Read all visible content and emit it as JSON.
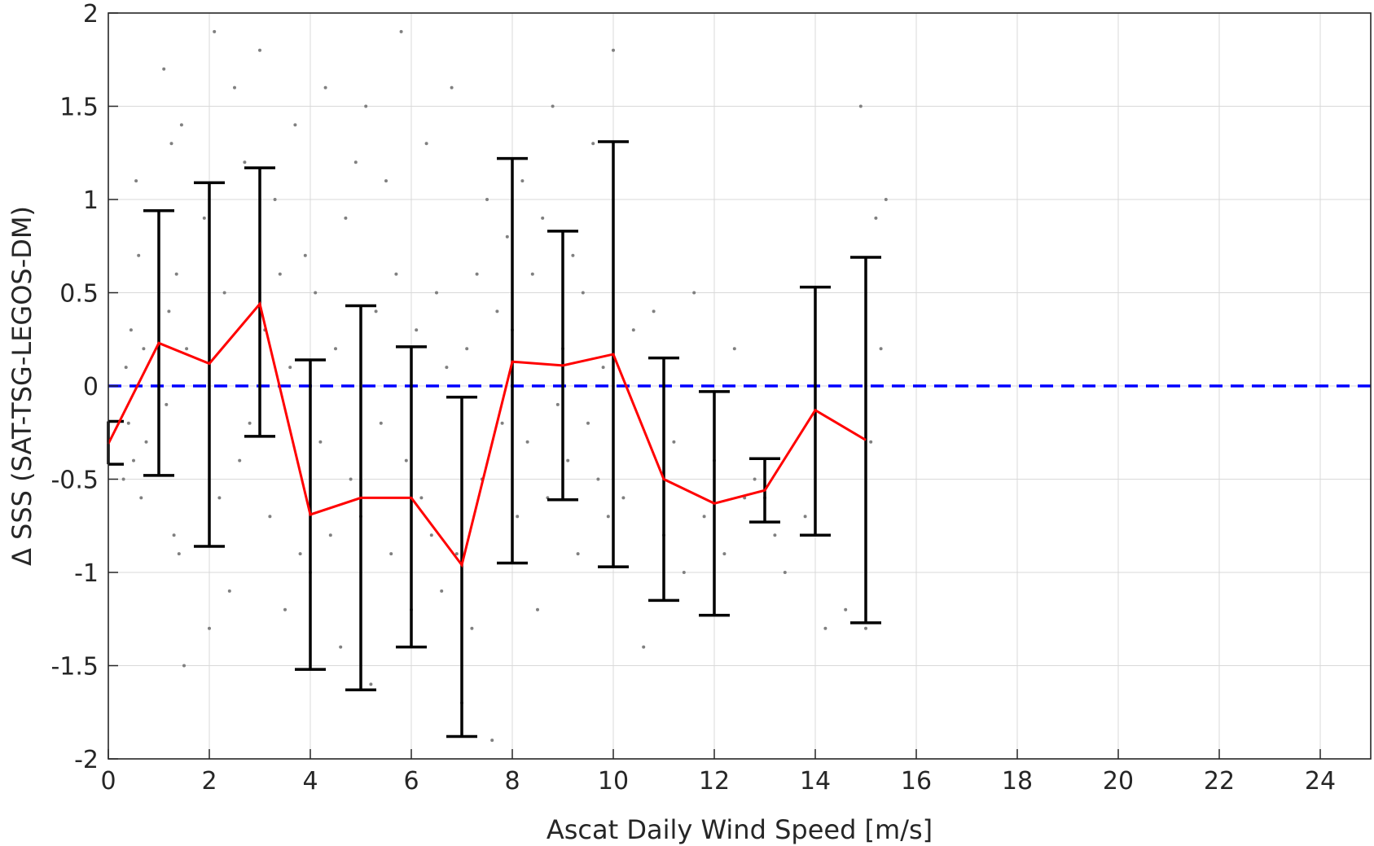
{
  "chart_data": {
    "type": "scatter",
    "xlabel": "Ascat Daily Wind Speed [m/s]",
    "ylabel": "Δ SSS (SAT-TSG-LEGOS-DM)",
    "xlim": [
      0,
      25
    ],
    "ylim": [
      -2,
      2
    ],
    "xticks": [
      "0",
      "2",
      "4",
      "6",
      "8",
      "10",
      "12",
      "14",
      "16",
      "18",
      "20",
      "22",
      "24"
    ],
    "yticks": [
      "-2",
      "-1.5",
      "-1",
      "-0.5",
      "0",
      "0.5",
      "1",
      "1.5",
      "2"
    ],
    "grid": true,
    "colors": {
      "scatter": "#808080",
      "mean_line": "#ff0000",
      "error_bars": "#000000",
      "zero_line": "#0000ff"
    },
    "zero_line": {
      "y": 0,
      "style": "dashed"
    },
    "mean_line": {
      "x": [
        0,
        1,
        2,
        3,
        4,
        5,
        6,
        7,
        8,
        9,
        10,
        11,
        12,
        13,
        14,
        15
      ],
      "y": [
        -0.31,
        0.23,
        0.12,
        0.44,
        -0.69,
        -0.6,
        -0.6,
        -0.96,
        0.13,
        0.11,
        0.17,
        -0.5,
        -0.63,
        -0.56,
        -0.13,
        -0.29
      ]
    },
    "error_bars": [
      {
        "x": 0,
        "low": -0.42,
        "high": -0.19
      },
      {
        "x": 1,
        "low": -0.48,
        "high": 0.94
      },
      {
        "x": 2,
        "low": -0.86,
        "high": 1.09
      },
      {
        "x": 3,
        "low": -0.27,
        "high": 1.17
      },
      {
        "x": 4,
        "low": -1.52,
        "high": 0.14
      },
      {
        "x": 5,
        "low": -1.63,
        "high": 0.43
      },
      {
        "x": 6,
        "low": -1.4,
        "high": 0.21
      },
      {
        "x": 7,
        "low": -1.88,
        "high": -0.06
      },
      {
        "x": 8,
        "low": -0.95,
        "high": 1.22
      },
      {
        "x": 9,
        "low": -0.61,
        "high": 0.83
      },
      {
        "x": 10,
        "low": -0.97,
        "high": 1.31
      },
      {
        "x": 11,
        "low": -1.15,
        "high": 0.15
      },
      {
        "x": 12,
        "low": -1.23,
        "high": -0.03
      },
      {
        "x": 13,
        "low": -0.73,
        "high": -0.39
      },
      {
        "x": 14,
        "low": -0.8,
        "high": 0.53
      },
      {
        "x": 15,
        "low": -1.27,
        "high": 0.69
      }
    ],
    "scatter_points": {
      "x": [
        0.3,
        0.35,
        0.4,
        0.45,
        0.5,
        0.55,
        0.6,
        0.65,
        0.7,
        0.75,
        1.1,
        1.15,
        1.2,
        1.25,
        1.3,
        1.35,
        1.4,
        1.45,
        1.5,
        1.55,
        1.9,
        2.0,
        2.1,
        2.2,
        2.3,
        2.4,
        2.5,
        2.6,
        2.7,
        2.8,
        3.0,
        3.1,
        3.2,
        3.3,
        3.4,
        3.5,
        3.6,
        3.7,
        3.8,
        3.9,
        4.0,
        4.1,
        4.2,
        4.3,
        4.4,
        4.5,
        4.6,
        4.7,
        4.8,
        4.9,
        5.0,
        5.1,
        5.2,
        5.3,
        5.4,
        5.5,
        5.6,
        5.7,
        5.8,
        5.9,
        6.0,
        6.1,
        6.2,
        6.3,
        6.4,
        6.5,
        6.6,
        6.7,
        6.8,
        6.9,
        7.0,
        7.1,
        7.2,
        7.3,
        7.4,
        7.5,
        7.6,
        7.7,
        7.8,
        7.9,
        8.0,
        8.1,
        8.2,
        8.3,
        8.4,
        8.5,
        8.6,
        8.7,
        8.8,
        8.9,
        9.0,
        9.1,
        9.2,
        9.3,
        9.4,
        9.5,
        9.6,
        9.7,
        9.8,
        9.9,
        10.0,
        10.2,
        10.4,
        10.6,
        10.8,
        11.0,
        11.2,
        11.4,
        11.6,
        11.8,
        12.0,
        12.2,
        12.4,
        12.6,
        12.8,
        13.0,
        13.2,
        13.4,
        13.8,
        14.2,
        14.6,
        14.9,
        15.0,
        15.1,
        15.2,
        15.3,
        15.4
      ],
      "y": [
        -0.5,
        0.1,
        -0.2,
        0.3,
        -0.4,
        1.1,
        0.7,
        -0.6,
        0.2,
        -0.3,
        1.7,
        -0.1,
        0.4,
        1.3,
        -0.8,
        0.6,
        -0.9,
        1.4,
        -1.5,
        0.2,
        0.9,
        -1.3,
        1.9,
        -0.6,
        0.5,
        -1.1,
        1.6,
        -0.4,
        1.2,
        -0.2,
        1.8,
        0.3,
        -0.7,
        1.0,
        0.6,
        -1.2,
        0.1,
        1.4,
        -0.9,
        0.7,
        -1.0,
        0.5,
        -0.3,
        1.6,
        -0.8,
        0.2,
        -1.4,
        0.9,
        -0.5,
        1.2,
        -0.7,
        1.5,
        -1.6,
        0.4,
        -0.2,
        1.1,
        -0.9,
        0.6,
        1.9,
        -0.4,
        -1.2,
        0.3,
        -0.6,
        1.3,
        -0.8,
        0.5,
        -1.1,
        0.1,
        1.6,
        -0.9,
        -1.7,
        0.2,
        -1.3,
        0.6,
        -0.5,
        1.0,
        -1.9,
        0.4,
        -0.2,
        0.8,
        0.3,
        -0.7,
        1.1,
        -0.3,
        0.6,
        -1.2,
        0.9,
        -0.6,
        1.5,
        -0.1,
        0.2,
        -0.4,
        0.7,
        -0.9,
        0.5,
        -0.2,
        1.3,
        -0.5,
        0.1,
        -0.7,
        1.8,
        -0.6,
        0.3,
        -1.4,
        0.4,
        -0.8,
        -0.3,
        -1.0,
        0.5,
        -0.7,
        -0.4,
        -0.9,
        0.2,
        -0.6,
        -0.5,
        -0.6,
        -0.8,
        -1.0,
        -0.7,
        -1.3,
        -1.2,
        1.5,
        -1.3,
        -0.3,
        0.9,
        0.2,
        1.0
      ]
    }
  }
}
